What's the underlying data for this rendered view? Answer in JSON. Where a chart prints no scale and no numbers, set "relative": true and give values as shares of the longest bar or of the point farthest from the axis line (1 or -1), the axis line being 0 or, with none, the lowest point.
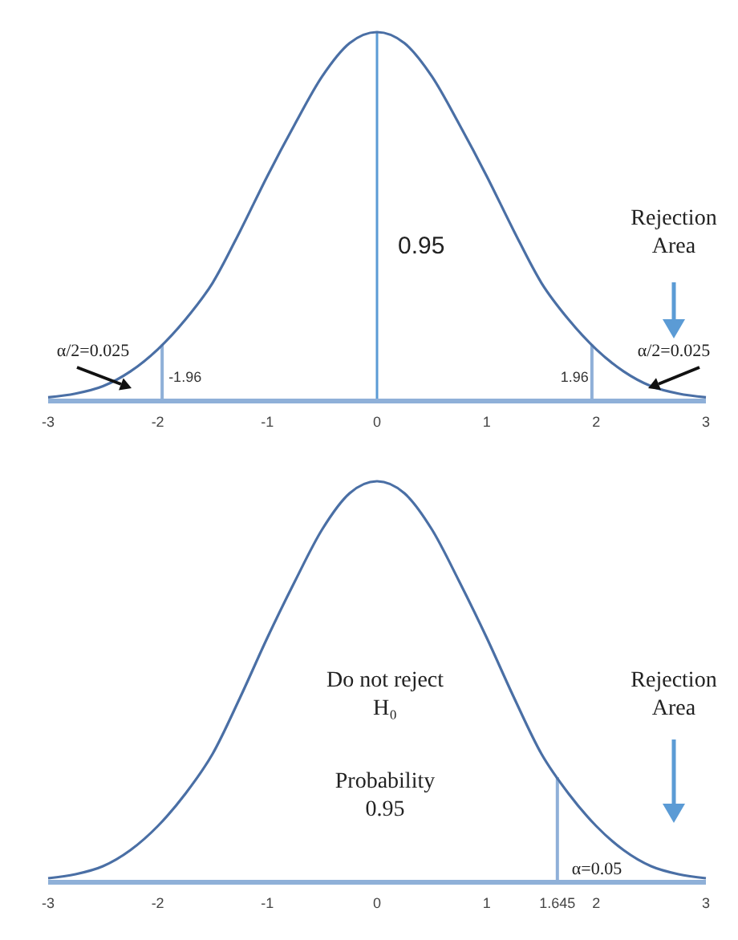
{
  "chart_data": [
    {
      "type": "line",
      "relative": true,
      "x": [
        -3,
        -2.75,
        -2.5,
        -2.25,
        -2,
        -1.75,
        -1.5,
        -1.25,
        -1,
        -0.75,
        -0.5,
        -0.25,
        0,
        0.25,
        0.5,
        0.75,
        1,
        1.25,
        1.5,
        1.75,
        2,
        2.25,
        2.5,
        2.75,
        3
      ],
      "series": [
        {
          "color": "#4a6fa5",
          "values": [
            0.01,
            0.02,
            0.04,
            0.08,
            0.14,
            0.22,
            0.32,
            0.46,
            0.61,
            0.75,
            0.88,
            0.97,
            1,
            0.97,
            0.88,
            0.75,
            0.61,
            0.46,
            0.32,
            0.22,
            0.14,
            0.08,
            0.04,
            0.02,
            0.01
          ]
        }
      ],
      "xlim": [
        -3,
        3
      ],
      "xticks": [
        -3,
        -2,
        -1,
        0,
        1,
        2,
        3
      ],
      "ref_lines": [
        {
          "axis": "x",
          "value": -1.96,
          "label": "-1.96",
          "color": "#8fb0d8"
        },
        {
          "axis": "x",
          "value": 0,
          "color": "#5b9bd5"
        },
        {
          "axis": "x",
          "value": 1.96,
          "label": "1.96",
          "color": "#8fb0d8"
        }
      ],
      "annotations": [
        "0.95",
        "α/2=0.025",
        "α/2=0.025",
        "Rejection\nArea"
      ]
    },
    {
      "type": "line",
      "relative": true,
      "x": [
        -3,
        -2.75,
        -2.5,
        -2.25,
        -2,
        -1.75,
        -1.5,
        -1.25,
        -1,
        -0.75,
        -0.5,
        -0.25,
        0,
        0.25,
        0.5,
        0.75,
        1,
        1.25,
        1.5,
        1.75,
        2,
        2.25,
        2.5,
        2.75,
        3
      ],
      "series": [
        {
          "color": "#4a6fa5",
          "values": [
            0.01,
            0.02,
            0.04,
            0.08,
            0.14,
            0.22,
            0.32,
            0.46,
            0.61,
            0.75,
            0.88,
            0.97,
            1,
            0.97,
            0.88,
            0.75,
            0.61,
            0.46,
            0.32,
            0.22,
            0.14,
            0.08,
            0.04,
            0.02,
            0.01
          ]
        }
      ],
      "xlim": [
        -3,
        3
      ],
      "xticks": [
        -3,
        -2,
        -1,
        0,
        1,
        {
          "value": 1.645,
          "label": "1.645"
        },
        2,
        3
      ],
      "ref_lines": [
        {
          "axis": "x",
          "value": 1.645,
          "color": "#8fb0d8"
        }
      ],
      "annotations": [
        "Do not reject\nH₀",
        "Probability\n0.95",
        "Rejection\nArea",
        "α=0.05"
      ]
    }
  ]
}
